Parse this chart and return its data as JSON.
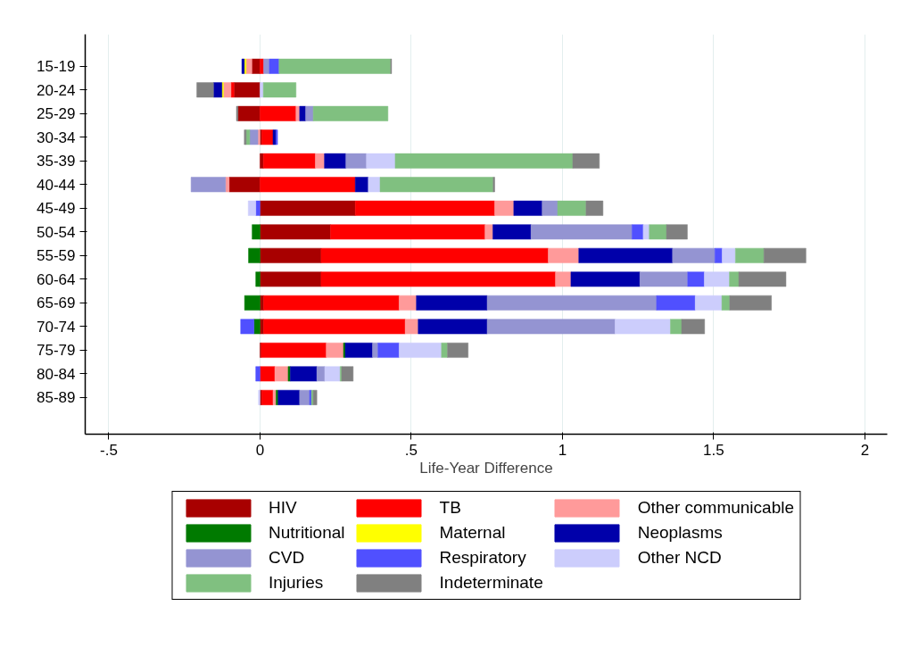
{
  "chart_data": {
    "type": "bar",
    "orientation": "horizontal",
    "stacked": true,
    "xlabel": "Life-Year Difference",
    "categories": [
      "15-19",
      "20-24",
      "25-29",
      "30-34",
      "35-39",
      "40-44",
      "45-49",
      "50-54",
      "55-59",
      "60-64",
      "65-69",
      "70-74",
      "75-79",
      "80-84",
      "85-89"
    ],
    "xlim": [
      -0.578,
      2.074
    ],
    "xticks": [
      {
        "value": -0.5,
        "label": "-.5"
      },
      0,
      {
        "value": 0.5,
        "label": ".5"
      },
      1,
      1.5,
      2
    ],
    "grid": "x",
    "legend": "bottom",
    "series": [
      {
        "name": "HIV",
        "color": "#a80000",
        "values": [
          -0.027,
          -0.086,
          -0.073,
          0.006,
          0.011,
          -0.102,
          0.315,
          0.233,
          0.202,
          0.202,
          0.012,
          0.012,
          0.004,
          null,
          0.006
        ]
      },
      {
        "name": "TB",
        "color": "#ff0000",
        "values": [
          0.012,
          -0.01,
          0.119,
          0.037,
          0.172,
          0.315,
          0.461,
          0.511,
          0.751,
          0.775,
          0.448,
          0.468,
          0.215,
          0.049,
          0.037
        ]
      },
      {
        "name": "Other communicable",
        "color": "#ff9a9a",
        "values": [
          -0.019,
          -0.025,
          0.012,
          -0.007,
          0.03,
          -0.012,
          0.063,
          0.026,
          0.101,
          0.051,
          0.057,
          0.043,
          0.057,
          0.044,
          0.01
        ]
      },
      {
        "name": "Nutritional",
        "color": "#007a00",
        "values": [
          null,
          null,
          null,
          null,
          null,
          null,
          null,
          -0.026,
          -0.038,
          -0.014,
          -0.051,
          -0.02,
          0.006,
          0.007,
          0.007
        ]
      },
      {
        "name": "Maternal",
        "color": "#ffff00",
        "values": [
          -0.006,
          -0.005,
          null,
          null,
          null,
          null,
          null,
          null,
          null,
          null,
          null,
          null,
          null,
          null,
          null
        ]
      },
      {
        "name": "Neoplasms",
        "color": "#0000aa",
        "values": [
          -0.008,
          -0.028,
          0.02,
          0.01,
          0.071,
          0.043,
          0.094,
          0.126,
          0.31,
          0.228,
          0.234,
          0.228,
          0.09,
          0.088,
          0.071
        ]
      },
      {
        "name": "CVD",
        "color": "#9494d2",
        "values": [
          0.019,
          null,
          0.025,
          -0.027,
          0.068,
          -0.114,
          0.051,
          0.334,
          0.14,
          0.158,
          0.56,
          0.423,
          0.018,
          0.026,
          0.033
        ]
      },
      {
        "name": "Respiratory",
        "color": "#5050ff",
        "values": [
          0.032,
          null,
          null,
          0.005,
          null,
          null,
          -0.014,
          0.037,
          0.024,
          0.055,
          0.128,
          -0.044,
          0.07,
          -0.014,
          0.006
        ]
      },
      {
        "name": "Other NCD",
        "color": "#cccdfc",
        "values": [
          null,
          0.011,
          null,
          null,
          0.095,
          0.039,
          -0.025,
          0.02,
          0.044,
          0.083,
          0.088,
          0.183,
          0.14,
          0.051,
          -0.005
        ]
      },
      {
        "name": "Injuries",
        "color": "#80c080",
        "values": [
          0.369,
          0.108,
          0.247,
          -0.012,
          0.587,
          0.374,
          0.094,
          0.057,
          0.094,
          0.031,
          0.026,
          0.037,
          0.02,
          0.005,
          0.006
        ]
      },
      {
        "name": "Indeterminate",
        "color": "#808080",
        "values": [
          0.003,
          -0.055,
          -0.005,
          -0.006,
          0.088,
          0.005,
          0.056,
          0.069,
          0.139,
          0.156,
          0.138,
          0.076,
          0.068,
          0.038,
          0.012
        ]
      }
    ]
  }
}
